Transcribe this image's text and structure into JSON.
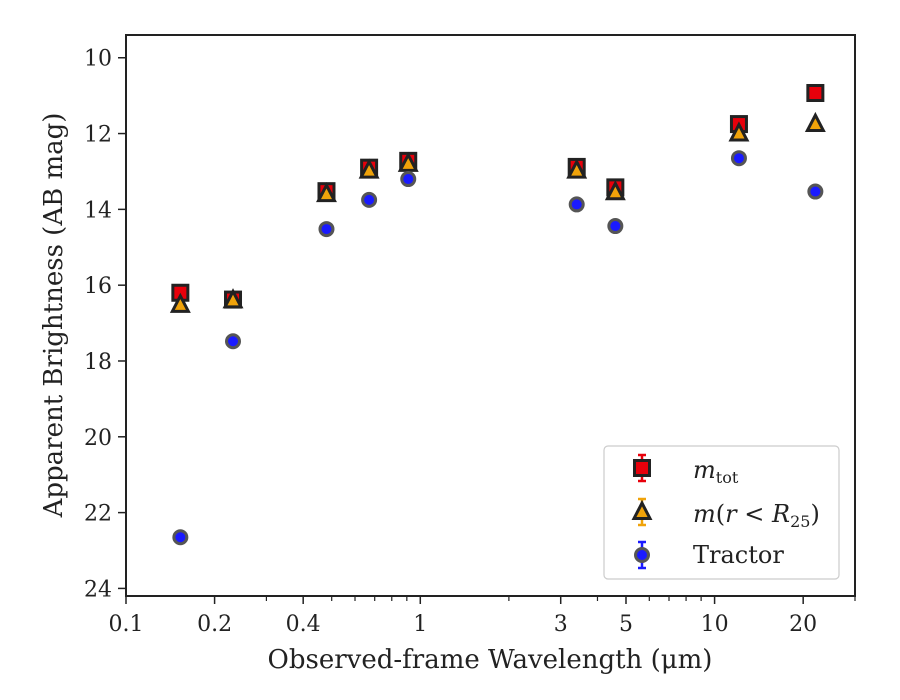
{
  "chart_data": {
    "type": "scatter",
    "xlabel": "Observed-frame Wavelength (μm)",
    "ylabel": "Apparent Brightness (AB mag)",
    "x_scale": "log",
    "xlim": [
      0.1,
      30
    ],
    "ylim": [
      24.2,
      9.4
    ],
    "y_inverted": true,
    "x_ticks": [
      {
        "value": 0.1,
        "label": "0.1"
      },
      {
        "value": 0.2,
        "label": "0.2"
      },
      {
        "value": 0.4,
        "label": "0.4"
      },
      {
        "value": 1,
        "label": "1"
      },
      {
        "value": 3,
        "label": "3"
      },
      {
        "value": 5,
        "label": "5"
      },
      {
        "value": 10,
        "label": "10"
      },
      {
        "value": 20,
        "label": "20"
      }
    ],
    "y_ticks": [
      10,
      12,
      14,
      16,
      18,
      20,
      22,
      24
    ],
    "grid": false,
    "legend_position": "lower-right",
    "series": [
      {
        "name": "m_tot",
        "marker": "square",
        "color": "#e8000b",
        "x": [
          0.153,
          0.231,
          0.48,
          0.67,
          0.91,
          3.4,
          4.6,
          12.1,
          22.0
        ],
        "y": [
          16.2,
          16.38,
          13.52,
          12.9,
          12.72,
          12.88,
          13.42,
          11.75,
          10.93
        ]
      },
      {
        "name": "m(r < R25)",
        "marker": "triangle",
        "color": "#f0a30a",
        "x": [
          0.153,
          0.231,
          0.48,
          0.67,
          0.91,
          3.4,
          4.6,
          12.1,
          22.0
        ],
        "y": [
          16.52,
          16.4,
          13.6,
          12.98,
          12.8,
          12.98,
          13.55,
          12.0,
          11.75
        ]
      },
      {
        "name": "Tractor",
        "marker": "circle",
        "color": "#1a1aff",
        "x": [
          0.153,
          0.231,
          0.48,
          0.67,
          0.91,
          3.4,
          4.6,
          12.1,
          22.0
        ],
        "y": [
          22.65,
          17.48,
          14.52,
          13.75,
          13.2,
          13.87,
          14.44,
          12.65,
          13.53
        ]
      }
    ]
  }
}
